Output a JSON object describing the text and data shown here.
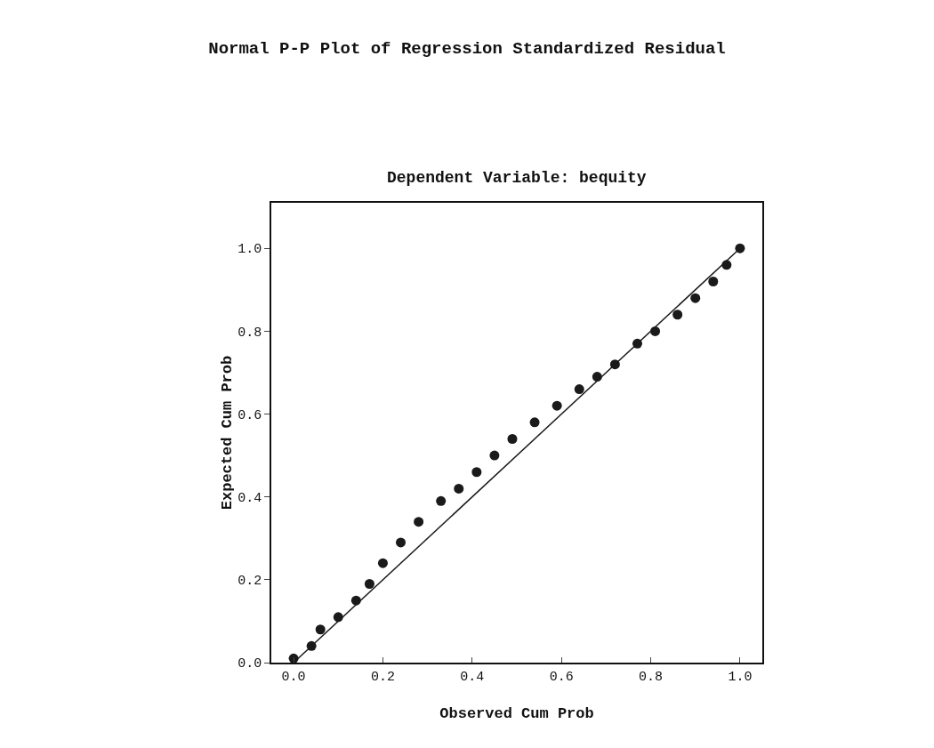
{
  "chart_data": {
    "type": "scatter",
    "title": "Normal P-P Plot of Regression Standardized Residual",
    "subtitle": "Dependent Variable: bequity",
    "xlabel": "Observed Cum Prob",
    "ylabel": "Expected Cum Prob",
    "xlim": [
      -0.05,
      1.05
    ],
    "ylim": [
      0,
      1.11
    ],
    "xticks": [
      {
        "value": 0,
        "label": "0.0"
      },
      {
        "value": 0.2,
        "label": "0.2"
      },
      {
        "value": 0.4,
        "label": "0.4"
      },
      {
        "value": 0.6,
        "label": "0.6"
      },
      {
        "value": 0.8,
        "label": "0.8"
      },
      {
        "value": 1,
        "label": "1.0"
      }
    ],
    "yticks": [
      {
        "value": 0,
        "label": "0.0"
      },
      {
        "value": 0.2,
        "label": "0.2"
      },
      {
        "value": 0.4,
        "label": "0.4"
      },
      {
        "value": 0.6,
        "label": "0.6"
      },
      {
        "value": 0.8,
        "label": "0.8"
      },
      {
        "value": 1,
        "label": "1.0"
      }
    ],
    "grid": false,
    "series": [
      {
        "color": "#1a1a1a",
        "marker": "circle",
        "x": [
          0.0,
          0.04,
          0.06,
          0.1,
          0.14,
          0.17,
          0.2,
          0.24,
          0.28,
          0.33,
          0.37,
          0.41,
          0.45,
          0.49,
          0.54,
          0.59,
          0.64,
          0.68,
          0.72,
          0.77,
          0.81,
          0.86,
          0.9,
          0.94,
          0.97,
          1.0
        ],
        "values": [
          0.01,
          0.04,
          0.08,
          0.11,
          0.15,
          0.19,
          0.24,
          0.29,
          0.34,
          0.39,
          0.42,
          0.46,
          0.5,
          0.54,
          0.58,
          0.62,
          0.66,
          0.69,
          0.72,
          0.77,
          0.8,
          0.84,
          0.88,
          0.92,
          0.96,
          1.0
        ]
      },
      {
        "type": "line",
        "color": "#1a1a1a",
        "x": [
          0,
          1
        ],
        "values": [
          0,
          1
        ],
        "line_style": "solid"
      }
    ]
  }
}
